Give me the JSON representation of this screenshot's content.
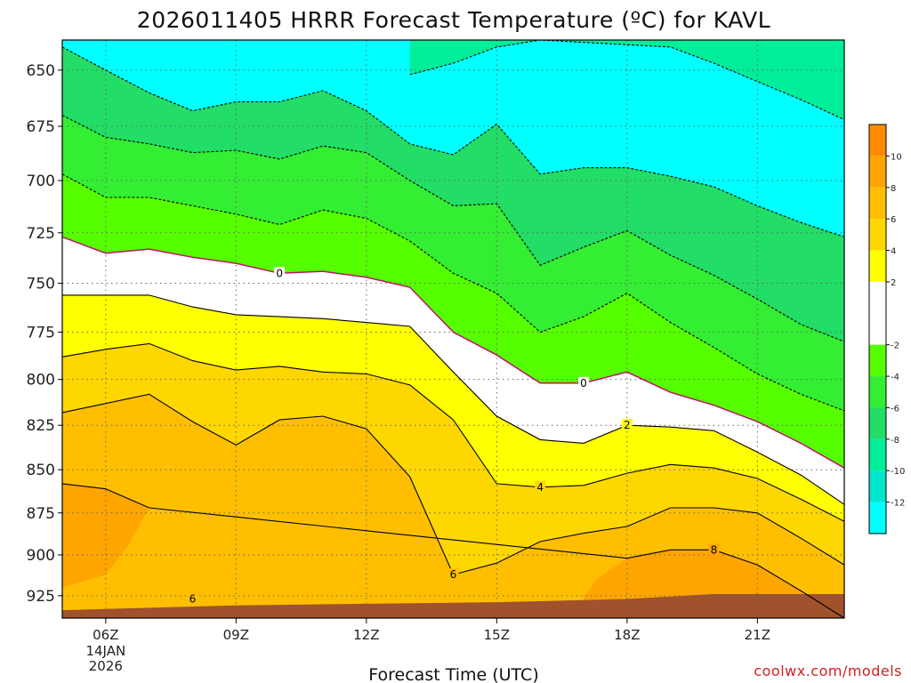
{
  "header": {
    "title": "2026011405 HRRR Forecast Temperature (ºC) for KAVL",
    "credit": "coolwx.com/models"
  },
  "chart_data": {
    "type": "heatmap",
    "title": "2026011405 HRRR Forecast Temperature (ºC) for KAVL",
    "xlabel": "Forecast Time (UTC)",
    "ylabel": "",
    "x_ticks": [
      {
        "hour": 6,
        "label": "06Z"
      },
      {
        "hour": 9,
        "label": "09Z"
      },
      {
        "hour": 12,
        "label": "12Z"
      },
      {
        "hour": 15,
        "label": "15Z"
      },
      {
        "hour": 18,
        "label": "18Z"
      },
      {
        "hour": 21,
        "label": "21Z"
      }
    ],
    "x_date_label": [
      "14JAN",
      "2026"
    ],
    "xlim": [
      5.0,
      23.0
    ],
    "y_ticks": [
      650,
      675,
      700,
      725,
      750,
      775,
      800,
      825,
      850,
      875,
      900,
      925
    ],
    "ylim": [
      637,
      939
    ],
    "y_scale": "log-pressure",
    "grid": true,
    "colorbar": {
      "ticks": [
        10,
        8,
        6,
        4,
        2,
        -2,
        -4,
        -6,
        -8,
        -10,
        -12
      ],
      "bands": [
        {
          "from": 10,
          "to": 12,
          "color": "#ff8c00"
        },
        {
          "from": 8,
          "to": 10,
          "color": "#ffa500"
        },
        {
          "from": 6,
          "to": 8,
          "color": "#ffbf00"
        },
        {
          "from": 4,
          "to": 6,
          "color": "#ffd700"
        },
        {
          "from": 2,
          "to": 4,
          "color": "#ffff00"
        },
        {
          "from": -2,
          "to": 2,
          "color": "#ffffff"
        },
        {
          "from": -4,
          "to": -2,
          "color": "#55ff00"
        },
        {
          "from": -6,
          "to": -4,
          "color": "#33ee33"
        },
        {
          "from": -8,
          "to": -6,
          "color": "#22dd66"
        },
        {
          "from": -10,
          "to": -8,
          "color": "#00ee99"
        },
        {
          "from": -12,
          "to": -10,
          "color": "#00e6cc"
        },
        {
          "from": -14,
          "to": -12,
          "color": "#00ffff"
        }
      ]
    },
    "x_hours": [
      5.0,
      6.0,
      7.0,
      8.0,
      9.0,
      10.0,
      11.0,
      12.0,
      13.0,
      14.0,
      15.0,
      16.0,
      17.0,
      18.0,
      19.0,
      20.0,
      21.0,
      22.0,
      23.0
    ],
    "isotherms": [
      {
        "value": -12,
        "pressure": [
          null,
          null,
          null,
          null,
          null,
          null,
          null,
          null,
          null,
          null,
          null,
          null,
          null,
          null,
          null,
          null,
          null,
          null,
          638
        ]
      },
      {
        "value": -10,
        "pressure": [
          null,
          null,
          null,
          null,
          null,
          null,
          null,
          null,
          652,
          647,
          640,
          637,
          null,
          null,
          640,
          647,
          655,
          663,
          672
        ]
      },
      {
        "value": -8,
        "pressure": [
          640,
          650,
          660,
          668,
          664,
          664,
          659,
          668,
          683,
          688,
          674,
          697,
          694,
          694,
          698,
          703,
          712,
          720,
          727
        ]
      },
      {
        "value": -6,
        "pressure": [
          670,
          680,
          683,
          687,
          686,
          690,
          684,
          687,
          700,
          712,
          711,
          741,
          732,
          724,
          736,
          746,
          758,
          771,
          780
        ]
      },
      {
        "value": -4,
        "pressure": [
          697,
          708,
          708,
          712,
          716,
          721,
          714,
          718,
          729,
          745,
          755,
          775,
          767,
          755,
          770,
          783,
          797,
          808,
          817
        ]
      },
      {
        "value": 0,
        "pressure": [
          727,
          735,
          733,
          737,
          740,
          745,
          744,
          747,
          752,
          775,
          787,
          802,
          802,
          796,
          807,
          814,
          823,
          835,
          849
        ]
      },
      {
        "value": 2,
        "pressure": [
          756,
          756,
          756,
          762,
          766,
          767,
          768,
          770,
          772,
          796,
          820,
          833,
          835,
          825,
          826,
          828,
          840,
          853,
          870
        ]
      },
      {
        "value": 4,
        "pressure": [
          788,
          784,
          781,
          790,
          795,
          793,
          796,
          797,
          803,
          822,
          858,
          860,
          859,
          852,
          847,
          849,
          855,
          867,
          880
        ]
      },
      {
        "value": 6,
        "pressure": [
          818,
          813,
          808,
          823,
          836,
          822,
          820,
          827,
          854,
          912,
          905,
          892,
          887,
          883,
          872,
          872,
          875,
          890,
          906
        ]
      },
      {
        "value": 8,
        "pressure": [
          858,
          861,
          872,
          null,
          null,
          null,
          null,
          null,
          null,
          null,
          null,
          null,
          null,
          902,
          897,
          897,
          906,
          922,
          939
        ]
      }
    ]
  }
}
